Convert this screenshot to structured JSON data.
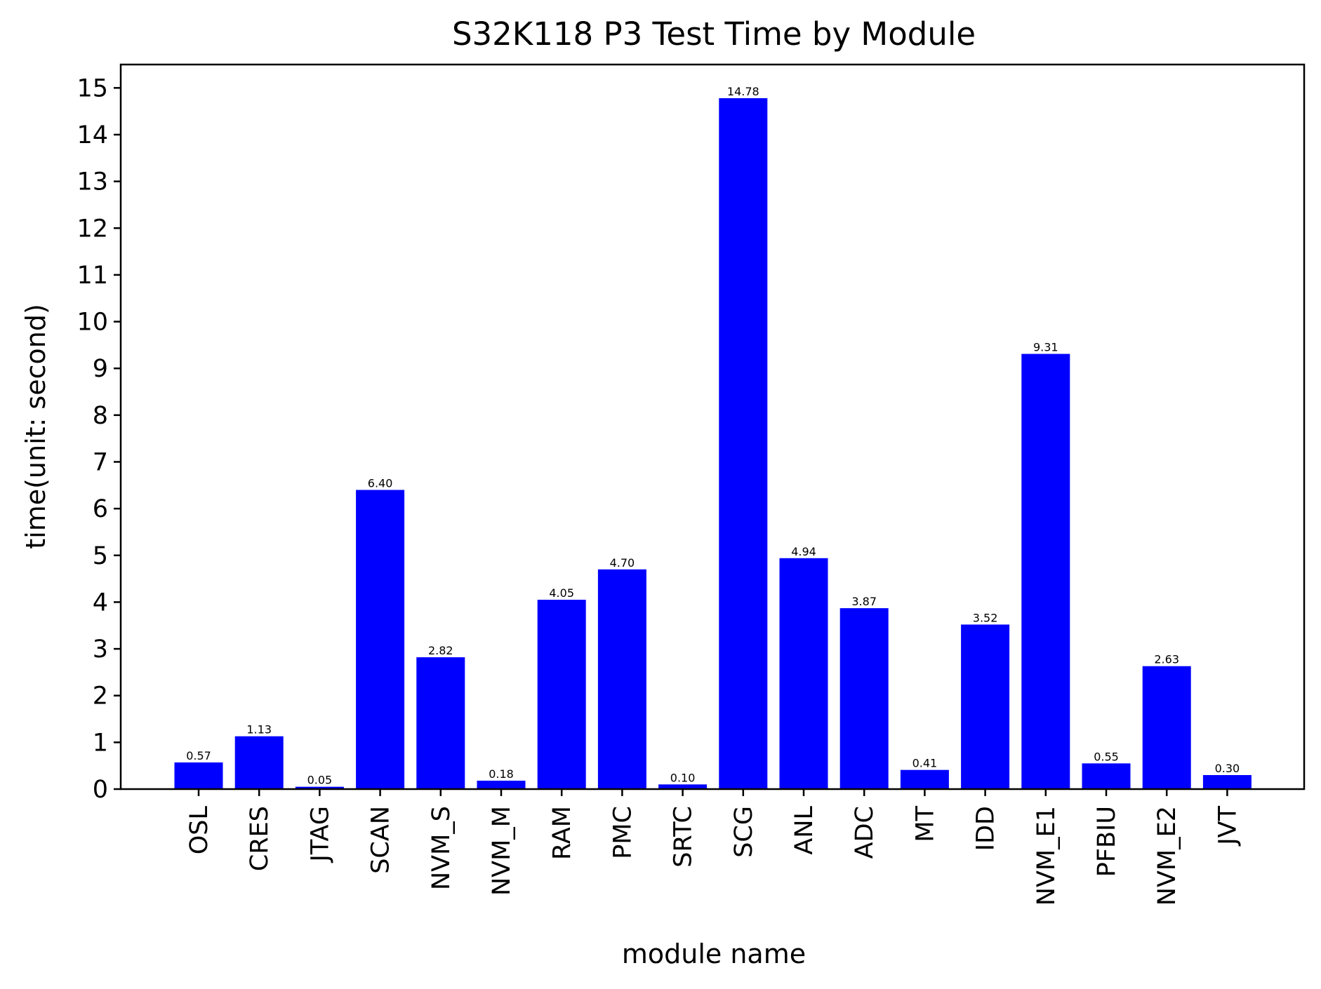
{
  "chart_data": {
    "type": "bar",
    "title": "S32K118 P3 Test Time by Module",
    "xlabel": "module name",
    "ylabel": "time(unit: second)",
    "ylim": [
      0,
      15.5
    ],
    "yticks": [
      0,
      1,
      2,
      3,
      4,
      5,
      6,
      7,
      8,
      9,
      10,
      11,
      12,
      13,
      14,
      15
    ],
    "grid": false,
    "bar_color": "#0000ff",
    "categories": [
      "OSL",
      "CRES",
      "JTAG",
      "SCAN",
      "NVM_S",
      "NVM_M",
      "RAM",
      "PMC",
      "SRTC",
      "SCG",
      "ANL",
      "ADC",
      "MT",
      "IDD",
      "NVM_E1",
      "PFBIU",
      "NVM_E2",
      "JVT"
    ],
    "values": [
      0.57,
      1.13,
      0.05,
      6.4,
      2.82,
      0.18,
      4.05,
      4.7,
      0.1,
      14.78,
      4.94,
      3.87,
      0.41,
      3.52,
      9.31,
      0.55,
      2.63,
      0.3
    ],
    "value_labels": [
      "0.57",
      "1.13",
      "0.05",
      "6.40",
      "2.82",
      "0.18",
      "4.05",
      "4.70",
      "0.10",
      "14.78",
      "4.94",
      "3.87",
      "0.41",
      "3.52",
      "9.31",
      "0.55",
      "2.63",
      "0.30"
    ]
  }
}
